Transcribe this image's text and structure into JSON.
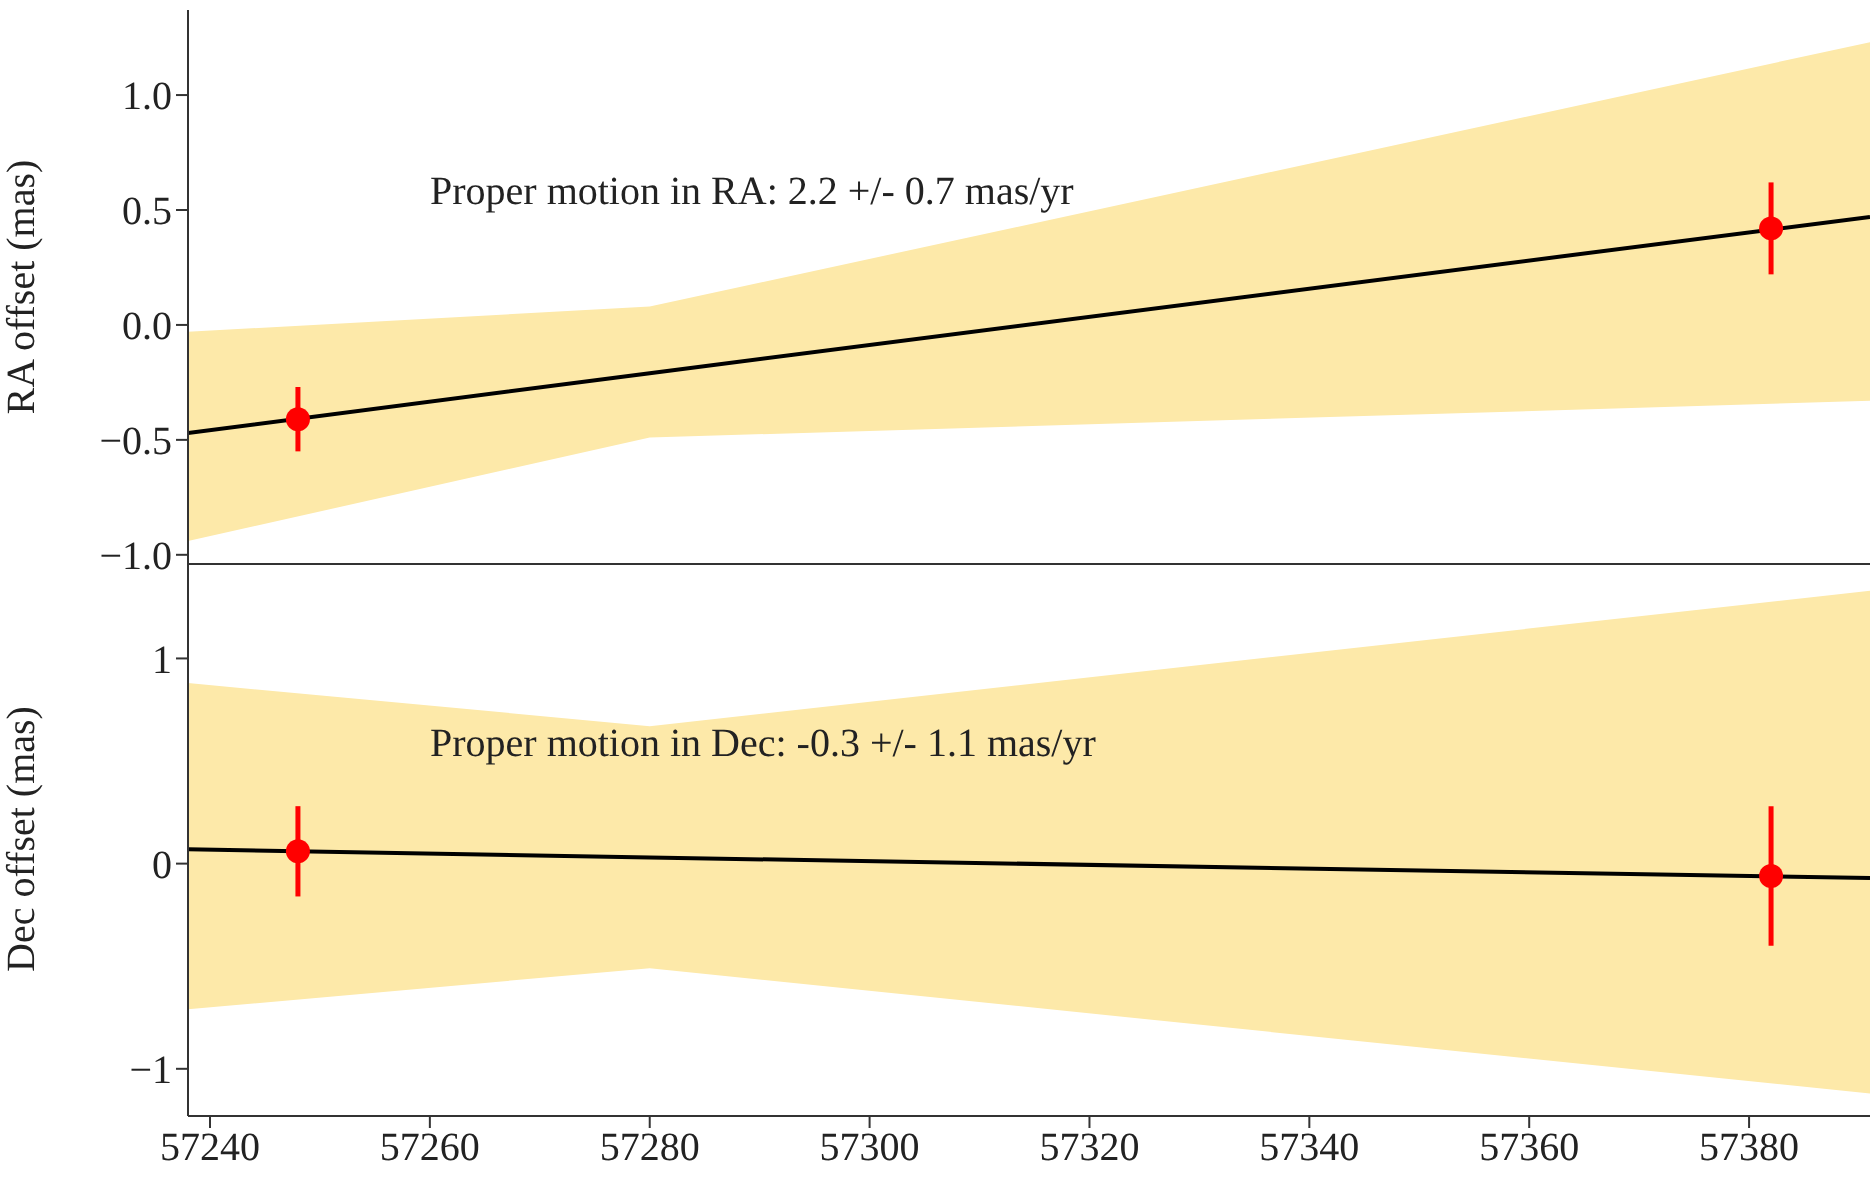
{
  "chart_data": [
    {
      "type": "line",
      "ylabel": "RA offset (mas)",
      "xlim": [
        57238,
        57391
      ],
      "xticks": [
        57240,
        57260,
        57280,
        57300,
        57320,
        57340,
        57360,
        57380
      ],
      "ylim": [
        -1.04,
        1.37
      ],
      "yticks": [
        {
          "value": -1,
          "label": "−1.0"
        },
        {
          "value": -0.5,
          "label": "−0.5"
        },
        {
          "value": 0,
          "label": "0.0"
        },
        {
          "value": 0.5,
          "label": "0.5"
        },
        {
          "value": 1,
          "label": "1.0"
        }
      ],
      "tick_labels": "y",
      "annotations": [
        "Proper motion in RA: 2.2 +/- 0.7 mas/yr"
      ],
      "series": [
        {
          "color": "#000000",
          "x": [
            57238,
            57280,
            57391
          ],
          "values": [
            -0.47,
            -0.21,
            0.47
          ],
          "lower": [
            -0.94,
            -0.49,
            -0.33
          ],
          "upper": [
            -0.03,
            0.08,
            1.23
          ]
        },
        {
          "type": "scatter",
          "color": "#ff0000",
          "marker": "circle",
          "x": [
            57248,
            57382
          ],
          "values": [
            -0.41,
            0.42
          ],
          "errors": [
            0.14,
            0.2
          ]
        }
      ]
    },
    {
      "type": "line",
      "ylabel": "Dec offset (mas)",
      "xlim": [
        57238,
        57391
      ],
      "xticks": [
        57240,
        57260,
        57280,
        57300,
        57320,
        57340,
        57360,
        57380
      ],
      "ylim": [
        -1.23,
        1.47
      ],
      "yticks": [
        {
          "value": -1,
          "label": "−1"
        },
        0,
        1
      ],
      "annotations": [
        "Proper motion in Dec: -0.3 +/- 1.1 mas/yr"
      ],
      "series": [
        {
          "color": "#000000",
          "x": [
            57238,
            57280,
            57391
          ],
          "values": [
            0.07,
            0.03,
            -0.07
          ],
          "lower": [
            -0.71,
            -0.51,
            -1.12
          ],
          "upper": [
            0.88,
            0.67,
            1.33
          ]
        },
        {
          "type": "scatter",
          "color": "#ff0000",
          "marker": "circle",
          "x": [
            57248,
            57382
          ],
          "values": [
            0.06,
            -0.06
          ],
          "errors": [
            0.22,
            0.34
          ]
        }
      ]
    }
  ]
}
